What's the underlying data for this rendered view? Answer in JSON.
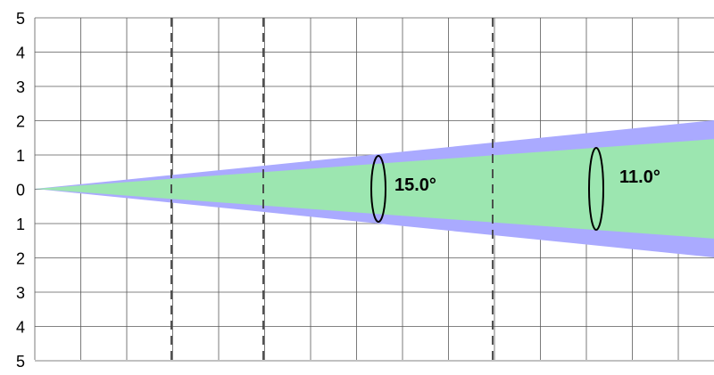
{
  "y_axis": {
    "tick_labels": [
      "5",
      "4",
      "3",
      "2",
      "1",
      "0",
      "1",
      "2",
      "3",
      "4",
      "5"
    ]
  },
  "beams": [
    {
      "angle_label": "15.0°",
      "half_height_at_right_edge": 2.0,
      "color": "#aaaaff"
    },
    {
      "angle_label": "11.0°",
      "half_height_at_right_edge": 1.45,
      "color": "#9ce6b0"
    }
  ],
  "colors": {
    "grid": "#5a5a5a",
    "dashed_lines": "#404040",
    "ellipse": "#000000",
    "text": "#000000"
  }
}
